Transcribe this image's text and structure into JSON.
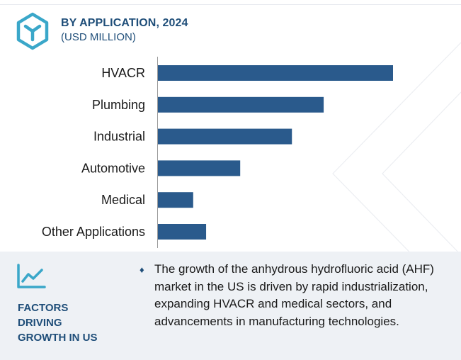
{
  "header": {
    "title": "BY APPLICATION, 2024",
    "subtitle": "(USD MILLION)",
    "logo_icon": "hexagon-cube-icon"
  },
  "colors": {
    "bar": "#2a5a8c",
    "accent": "#1f4e79",
    "logo": "#3aa7c9",
    "panel_bg": "#eef1f5"
  },
  "chart_data": {
    "type": "bar",
    "orientation": "horizontal",
    "title": "BY APPLICATION, 2024",
    "subtitle": "(USD MILLION)",
    "categories": [
      "HVACR",
      "Plumbing",
      "Industrial",
      "Automotive",
      "Medical",
      "Other Applications"
    ],
    "values": [
      100,
      70.5,
      57,
      35,
      15,
      20.5
    ],
    "value_axis_shown": false,
    "grid": false,
    "legend": "none"
  },
  "factors": {
    "icon": "trend-line-icon",
    "heading": [
      "FACTORS",
      "DRIVING",
      "GROWTH IN US"
    ],
    "bullet_icon": "diamond-bullet-icon",
    "text": "The growth of the anhydrous hydrofluoric acid (AHF) market in the US is driven by rapid industrialization, expanding HVACR and medical sectors, and advancements in manufacturing technologies."
  }
}
